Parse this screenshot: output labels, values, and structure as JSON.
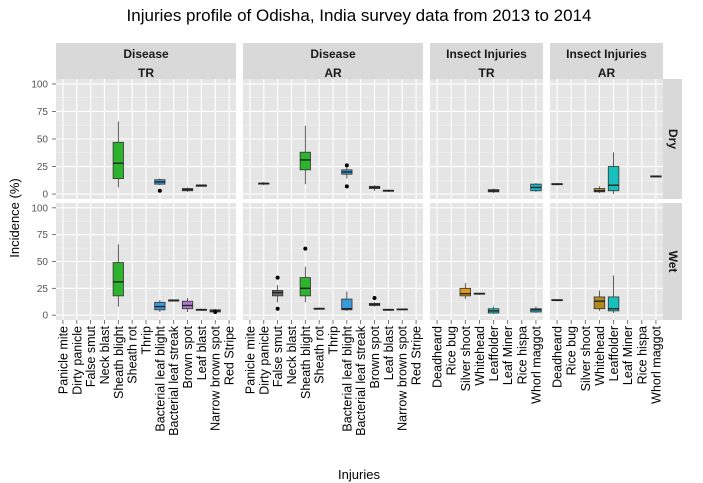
{
  "chart_data": {
    "type": "box",
    "title": "Injuries profile of Odisha, India survey data from 2013 to 2014",
    "xlabel": "Injuries",
    "ylabel": "Incidence (%)",
    "ylim": [
      0,
      100
    ],
    "yticks": [
      0,
      25,
      50,
      75,
      100
    ],
    "grid": true,
    "row_facets": [
      "Dry",
      "Wet"
    ],
    "column_facets": [
      {
        "group": "Disease",
        "subgroup": "TR",
        "categories": [
          "Panicle mite",
          "Dirty panicle",
          "False smut",
          "Neck blast",
          "Sheath blight",
          "Sheath rot",
          "Thrip",
          "Bacterial leaf blight",
          "Bacterial leaf streak",
          "Brown spot",
          "Leaf blast",
          "Narrow brown spot",
          "Red Stripe"
        ]
      },
      {
        "group": "Disease",
        "subgroup": "AR",
        "categories": [
          "Panicle mite",
          "Dirty panicle",
          "False smut",
          "Neck blast",
          "Sheath blight",
          "Sheath rot",
          "Thrip",
          "Bacterial leaf blight",
          "Bacterial leaf streak",
          "Brown spot",
          "Leaf blast",
          "Narrow brown spot",
          "Red Stripe"
        ]
      },
      {
        "group": "Insect Injuries",
        "subgroup": "TR",
        "categories": [
          "Deadheard",
          "Rice bug",
          "Silver shoot",
          "Whitehead",
          "Leaffolder",
          "Leaf Miner",
          "Rice hispa",
          "Whorl maggot"
        ]
      },
      {
        "group": "Insect Injuries",
        "subgroup": "AR",
        "categories": [
          "Deadheard",
          "Rice bug",
          "Silver shoot",
          "Whitehead",
          "Leaffolder",
          "Leaf Miner",
          "Rice hispa",
          "Whorl maggot"
        ]
      }
    ],
    "category_colors": {
      "Sheath blight": "#2db32d",
      "Bacterial leaf blight": "#3a9ad9",
      "Brown spot": "#b07ad0",
      "Silver shoot": "#e09a1a",
      "Whitehead": "#b08a20",
      "Leaffolder": "#17c0bd",
      "Whorl maggot": "#17b5c8",
      "default": "#6b6b6b"
    },
    "boxes": [
      {
        "row": "Dry",
        "col": 0,
        "category": "Sheath blight",
        "min": 6,
        "q1": 14,
        "median": 28,
        "q3": 47,
        "max": 66,
        "outliers": []
      },
      {
        "row": "Dry",
        "col": 0,
        "category": "Bacterial leaf blight",
        "min": 8,
        "q1": 9,
        "median": 11,
        "q3": 13,
        "max": 14,
        "outliers": [
          3
        ]
      },
      {
        "row": "Dry",
        "col": 0,
        "category": "Brown spot",
        "min": 2,
        "q1": 3,
        "median": 4,
        "q3": 5,
        "max": 6,
        "outliers": []
      },
      {
        "row": "Dry",
        "col": 0,
        "category": "Leaf blast",
        "min": 7,
        "q1": 7,
        "median": 8,
        "q3": 8,
        "max": 8,
        "outliers": []
      },
      {
        "row": "Dry",
        "col": 1,
        "category": "Dirty panicle",
        "min": 8,
        "q1": 9,
        "median": 9.5,
        "q3": 10,
        "max": 11,
        "outliers": []
      },
      {
        "row": "Dry",
        "col": 1,
        "category": "Sheath blight",
        "min": 9,
        "q1": 22,
        "median": 31,
        "q3": 38,
        "max": 62,
        "outliers": []
      },
      {
        "row": "Dry",
        "col": 1,
        "category": "Bacterial leaf blight",
        "min": 14,
        "q1": 18,
        "median": 20,
        "q3": 22,
        "max": 24,
        "outliers": [
          7,
          26
        ]
      },
      {
        "row": "Dry",
        "col": 1,
        "category": "Brown spot",
        "min": 3,
        "q1": 5,
        "median": 6,
        "q3": 7,
        "max": 8,
        "outliers": []
      },
      {
        "row": "Dry",
        "col": 1,
        "category": "Leaf blast",
        "min": 2,
        "q1": 2.5,
        "median": 3,
        "q3": 3.5,
        "max": 4,
        "outliers": []
      },
      {
        "row": "Dry",
        "col": 2,
        "category": "Leaffolder",
        "min": 1,
        "q1": 2,
        "median": 3,
        "q3": 4,
        "max": 5,
        "outliers": []
      },
      {
        "row": "Dry",
        "col": 2,
        "category": "Whorl maggot",
        "min": 2,
        "q1": 3,
        "median": 6,
        "q3": 9,
        "max": 10,
        "outliers": []
      },
      {
        "row": "Dry",
        "col": 3,
        "category": "Deadheard",
        "min": 8,
        "q1": 8.5,
        "median": 9,
        "q3": 9.5,
        "max": 10,
        "outliers": []
      },
      {
        "row": "Dry",
        "col": 3,
        "category": "Whitehead",
        "min": 1,
        "q1": 2,
        "median": 3,
        "q3": 5,
        "max": 7,
        "outliers": []
      },
      {
        "row": "Dry",
        "col": 3,
        "category": "Leaffolder",
        "min": 0,
        "q1": 3,
        "median": 8,
        "q3": 25,
        "max": 38,
        "outliers": []
      },
      {
        "row": "Dry",
        "col": 3,
        "category": "Whorl maggot",
        "min": 15,
        "q1": 15.5,
        "median": 16,
        "q3": 16.5,
        "max": 17,
        "outliers": []
      },
      {
        "row": "Wet",
        "col": 0,
        "category": "Sheath blight",
        "min": 8,
        "q1": 18,
        "median": 31,
        "q3": 49,
        "max": 66,
        "outliers": []
      },
      {
        "row": "Wet",
        "col": 0,
        "category": "Bacterial leaf blight",
        "min": 3,
        "q1": 5,
        "median": 8,
        "q3": 12,
        "max": 14,
        "outliers": []
      },
      {
        "row": "Wet",
        "col": 0,
        "category": "Bacterial leaf streak",
        "min": 14,
        "q1": 14,
        "median": 14,
        "q3": 14,
        "max": 14,
        "outliers": []
      },
      {
        "row": "Wet",
        "col": 0,
        "category": "Brown spot",
        "min": 3,
        "q1": 6,
        "median": 9,
        "q3": 13,
        "max": 16,
        "outliers": []
      },
      {
        "row": "Wet",
        "col": 0,
        "category": "Leaf blast",
        "min": 4,
        "q1": 4.5,
        "median": 5,
        "q3": 5.5,
        "max": 6,
        "outliers": []
      },
      {
        "row": "Wet",
        "col": 0,
        "category": "Narrow brown spot",
        "min": 2,
        "q1": 3,
        "median": 4,
        "q3": 5,
        "max": 6,
        "outliers": [
          3
        ]
      },
      {
        "row": "Wet",
        "col": 1,
        "category": "False smut",
        "min": 12,
        "q1": 18,
        "median": 21,
        "q3": 23,
        "max": 28,
        "outliers": [
          6,
          35
        ]
      },
      {
        "row": "Wet",
        "col": 1,
        "category": "Sheath blight",
        "min": 12,
        "q1": 18,
        "median": 25,
        "q3": 35,
        "max": 45,
        "outliers": [
          62
        ]
      },
      {
        "row": "Wet",
        "col": 1,
        "category": "Sheath rot",
        "min": 5,
        "q1": 5.5,
        "median": 6,
        "q3": 6.5,
        "max": 7,
        "outliers": []
      },
      {
        "row": "Wet",
        "col": 1,
        "category": "Bacterial leaf blight",
        "min": 4,
        "q1": 5,
        "median": 6,
        "q3": 15,
        "max": 22,
        "outliers": []
      },
      {
        "row": "Wet",
        "col": 1,
        "category": "Brown spot",
        "min": 8,
        "q1": 9,
        "median": 10,
        "q3": 11,
        "max": 12,
        "outliers": [
          16
        ]
      },
      {
        "row": "Wet",
        "col": 1,
        "category": "Leaf blast",
        "min": 4,
        "q1": 4.5,
        "median": 5,
        "q3": 5.5,
        "max": 6,
        "outliers": []
      },
      {
        "row": "Wet",
        "col": 1,
        "category": "Narrow brown spot",
        "min": 5,
        "q1": 5.3,
        "median": 5.5,
        "q3": 5.8,
        "max": 6,
        "outliers": []
      },
      {
        "row": "Wet",
        "col": 2,
        "category": "Silver shoot",
        "min": 15,
        "q1": 18,
        "median": 20,
        "q3": 25,
        "max": 30,
        "outliers": []
      },
      {
        "row": "Wet",
        "col": 2,
        "category": "Whitehead",
        "min": 19,
        "q1": 19.5,
        "median": 20,
        "q3": 20.5,
        "max": 21,
        "outliers": []
      },
      {
        "row": "Wet",
        "col": 2,
        "category": "Leaffolder",
        "min": 1,
        "q1": 2,
        "median": 4,
        "q3": 6,
        "max": 8,
        "outliers": []
      },
      {
        "row": "Wet",
        "col": 2,
        "category": "Whorl maggot",
        "min": 2,
        "q1": 3,
        "median": 5,
        "q3": 6,
        "max": 8,
        "outliers": []
      },
      {
        "row": "Wet",
        "col": 3,
        "category": "Deadheard",
        "min": 13,
        "q1": 13.5,
        "median": 14,
        "q3": 14.5,
        "max": 15,
        "outliers": []
      },
      {
        "row": "Wet",
        "col": 3,
        "category": "Whitehead",
        "min": 4,
        "q1": 6,
        "median": 13,
        "q3": 17,
        "max": 23,
        "outliers": []
      },
      {
        "row": "Wet",
        "col": 3,
        "category": "Leaffolder",
        "min": 2,
        "q1": 4,
        "median": 6,
        "q3": 17,
        "max": 37,
        "outliers": []
      }
    ]
  }
}
